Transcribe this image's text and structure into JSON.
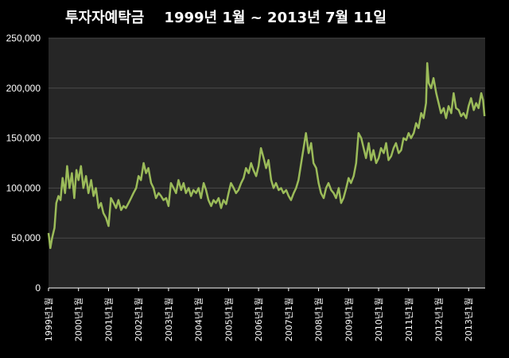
{
  "chart_data": {
    "type": "line",
    "title": "투자자예탁금    1999년 1월 ~ 2013년 7월 11일",
    "xlabel": "",
    "ylabel": "",
    "ylim": [
      0,
      250000
    ],
    "xlim": [
      1999.0,
      2013.55
    ],
    "yticks": [
      "0",
      "50,000",
      "100,000",
      "150,000",
      "200,000",
      "250,000"
    ],
    "xticks": [
      "1999년1월",
      "2000년1월",
      "2001년1월",
      "2002년1월",
      "2003년1월",
      "2004년1월",
      "2005년1월",
      "2006년1월",
      "2007년1월",
      "2008년1월",
      "2009년1월",
      "2010년1월",
      "2011년1월",
      "2012년1월",
      "2013년1월"
    ],
    "grid": true,
    "colors": {
      "plot_bg": "#262626",
      "line": "#9BBB59",
      "grid": "#4a4a4a",
      "text": "#ffffff"
    },
    "series": [
      {
        "name": "",
        "points": [
          [
            1999.0,
            55000
          ],
          [
            1999.06,
            40000
          ],
          [
            1999.12,
            50000
          ],
          [
            1999.2,
            60000
          ],
          [
            1999.26,
            85000
          ],
          [
            1999.33,
            92000
          ],
          [
            1999.4,
            88000
          ],
          [
            1999.47,
            110000
          ],
          [
            1999.55,
            95000
          ],
          [
            1999.62,
            122000
          ],
          [
            1999.7,
            100000
          ],
          [
            1999.78,
            115000
          ],
          [
            1999.86,
            90000
          ],
          [
            1999.93,
            118000
          ],
          [
            2000.0,
            108000
          ],
          [
            2000.08,
            122000
          ],
          [
            2000.16,
            100000
          ],
          [
            2000.25,
            112000
          ],
          [
            2000.33,
            95000
          ],
          [
            2000.42,
            108000
          ],
          [
            2000.5,
            92000
          ],
          [
            2000.58,
            100000
          ],
          [
            2000.67,
            80000
          ],
          [
            2000.75,
            85000
          ],
          [
            2000.83,
            75000
          ],
          [
            2000.92,
            70000
          ],
          [
            2001.0,
            62000
          ],
          [
            2001.08,
            90000
          ],
          [
            2001.17,
            85000
          ],
          [
            2001.25,
            80000
          ],
          [
            2001.33,
            88000
          ],
          [
            2001.42,
            78000
          ],
          [
            2001.5,
            82000
          ],
          [
            2001.58,
            80000
          ],
          [
            2001.67,
            85000
          ],
          [
            2001.75,
            90000
          ],
          [
            2001.83,
            95000
          ],
          [
            2001.92,
            100000
          ],
          [
            2002.0,
            112000
          ],
          [
            2002.08,
            108000
          ],
          [
            2002.17,
            125000
          ],
          [
            2002.25,
            115000
          ],
          [
            2002.33,
            120000
          ],
          [
            2002.42,
            105000
          ],
          [
            2002.5,
            100000
          ],
          [
            2002.58,
            90000
          ],
          [
            2002.67,
            95000
          ],
          [
            2002.75,
            92000
          ],
          [
            2002.83,
            88000
          ],
          [
            2002.92,
            90000
          ],
          [
            2003.0,
            82000
          ],
          [
            2003.08,
            105000
          ],
          [
            2003.17,
            100000
          ],
          [
            2003.25,
            95000
          ],
          [
            2003.33,
            108000
          ],
          [
            2003.42,
            98000
          ],
          [
            2003.5,
            105000
          ],
          [
            2003.58,
            95000
          ],
          [
            2003.67,
            100000
          ],
          [
            2003.75,
            92000
          ],
          [
            2003.83,
            98000
          ],
          [
            2003.92,
            95000
          ],
          [
            2004.0,
            100000
          ],
          [
            2004.08,
            90000
          ],
          [
            2004.17,
            105000
          ],
          [
            2004.25,
            98000
          ],
          [
            2004.33,
            88000
          ],
          [
            2004.42,
            82000
          ],
          [
            2004.5,
            88000
          ],
          [
            2004.58,
            85000
          ],
          [
            2004.67,
            90000
          ],
          [
            2004.75,
            80000
          ],
          [
            2004.83,
            88000
          ],
          [
            2004.92,
            84000
          ],
          [
            2005.0,
            95000
          ],
          [
            2005.08,
            105000
          ],
          [
            2005.17,
            100000
          ],
          [
            2005.25,
            95000
          ],
          [
            2005.33,
            98000
          ],
          [
            2005.42,
            105000
          ],
          [
            2005.5,
            110000
          ],
          [
            2005.58,
            120000
          ],
          [
            2005.67,
            115000
          ],
          [
            2005.75,
            125000
          ],
          [
            2005.83,
            118000
          ],
          [
            2005.92,
            112000
          ],
          [
            2006.0,
            122000
          ],
          [
            2006.08,
            140000
          ],
          [
            2006.17,
            130000
          ],
          [
            2006.25,
            120000
          ],
          [
            2006.33,
            128000
          ],
          [
            2006.42,
            108000
          ],
          [
            2006.5,
            100000
          ],
          [
            2006.58,
            105000
          ],
          [
            2006.67,
            98000
          ],
          [
            2006.75,
            100000
          ],
          [
            2006.83,
            95000
          ],
          [
            2006.92,
            98000
          ],
          [
            2007.0,
            92000
          ],
          [
            2007.08,
            88000
          ],
          [
            2007.17,
            95000
          ],
          [
            2007.25,
            100000
          ],
          [
            2007.33,
            108000
          ],
          [
            2007.42,
            125000
          ],
          [
            2007.5,
            140000
          ],
          [
            2007.58,
            155000
          ],
          [
            2007.67,
            135000
          ],
          [
            2007.75,
            145000
          ],
          [
            2007.83,
            125000
          ],
          [
            2007.92,
            120000
          ],
          [
            2008.0,
            105000
          ],
          [
            2008.08,
            95000
          ],
          [
            2008.17,
            90000
          ],
          [
            2008.25,
            100000
          ],
          [
            2008.33,
            105000
          ],
          [
            2008.42,
            98000
          ],
          [
            2008.5,
            95000
          ],
          [
            2008.58,
            90000
          ],
          [
            2008.67,
            100000
          ],
          [
            2008.75,
            85000
          ],
          [
            2008.83,
            90000
          ],
          [
            2008.92,
            100000
          ],
          [
            2009.0,
            110000
          ],
          [
            2009.08,
            105000
          ],
          [
            2009.17,
            112000
          ],
          [
            2009.25,
            125000
          ],
          [
            2009.33,
            155000
          ],
          [
            2009.42,
            150000
          ],
          [
            2009.5,
            140000
          ],
          [
            2009.58,
            130000
          ],
          [
            2009.67,
            145000
          ],
          [
            2009.75,
            128000
          ],
          [
            2009.83,
            138000
          ],
          [
            2009.92,
            125000
          ],
          [
            2010.0,
            130000
          ],
          [
            2010.08,
            140000
          ],
          [
            2010.17,
            135000
          ],
          [
            2010.25,
            145000
          ],
          [
            2010.33,
            128000
          ],
          [
            2010.42,
            132000
          ],
          [
            2010.5,
            140000
          ],
          [
            2010.58,
            145000
          ],
          [
            2010.67,
            135000
          ],
          [
            2010.75,
            138000
          ],
          [
            2010.83,
            150000
          ],
          [
            2010.92,
            148000
          ],
          [
            2011.0,
            155000
          ],
          [
            2011.08,
            150000
          ],
          [
            2011.17,
            155000
          ],
          [
            2011.25,
            165000
          ],
          [
            2011.33,
            160000
          ],
          [
            2011.42,
            175000
          ],
          [
            2011.5,
            170000
          ],
          [
            2011.58,
            185000
          ],
          [
            2011.62,
            225000
          ],
          [
            2011.67,
            205000
          ],
          [
            2011.75,
            200000
          ],
          [
            2011.83,
            210000
          ],
          [
            2011.92,
            195000
          ],
          [
            2012.0,
            185000
          ],
          [
            2012.08,
            175000
          ],
          [
            2012.17,
            180000
          ],
          [
            2012.25,
            170000
          ],
          [
            2012.33,
            182000
          ],
          [
            2012.42,
            175000
          ],
          [
            2012.5,
            195000
          ],
          [
            2012.58,
            180000
          ],
          [
            2012.67,
            178000
          ],
          [
            2012.75,
            172000
          ],
          [
            2012.83,
            175000
          ],
          [
            2012.92,
            170000
          ],
          [
            2013.0,
            182000
          ],
          [
            2013.08,
            190000
          ],
          [
            2013.17,
            178000
          ],
          [
            2013.25,
            185000
          ],
          [
            2013.33,
            180000
          ],
          [
            2013.42,
            195000
          ],
          [
            2013.48,
            188000
          ],
          [
            2013.53,
            172000
          ]
        ]
      }
    ]
  }
}
